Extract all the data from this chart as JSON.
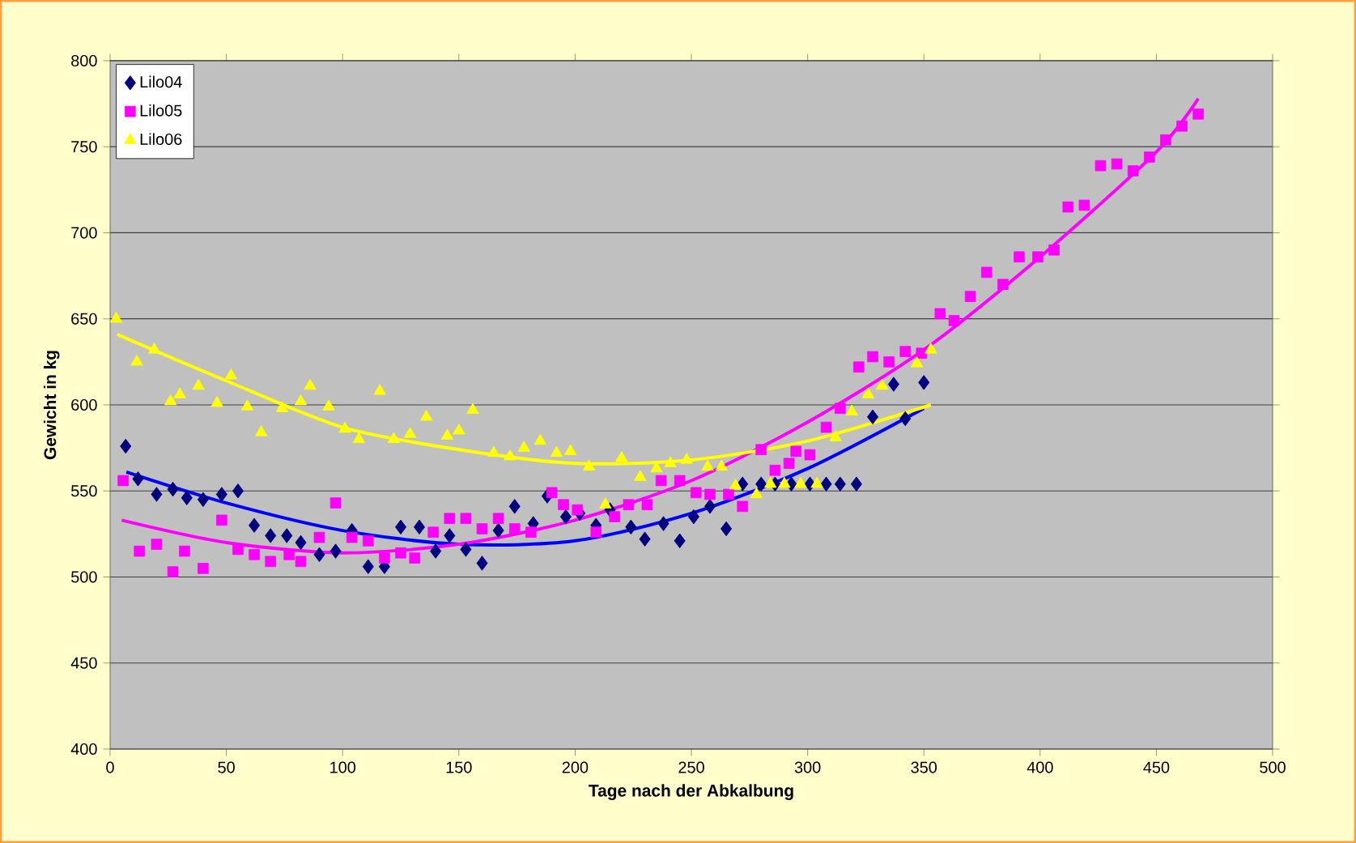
{
  "chart_data": {
    "type": "scatter",
    "xlabel": "Tage nach der Abkalbung",
    "ylabel": "Gewicht in kg",
    "xlim": [
      0,
      500
    ],
    "ylim": [
      400,
      800
    ],
    "xticks": [
      0,
      50,
      100,
      150,
      200,
      250,
      300,
      350,
      400,
      450,
      500
    ],
    "yticks": [
      400,
      450,
      500,
      550,
      600,
      650,
      700,
      750,
      800
    ],
    "grid": "y",
    "legend": "top left",
    "series": [
      {
        "name": "Lilo04",
        "color": "#000080",
        "marker": "diamond",
        "x": [
          6.7,
          12,
          20,
          27,
          33,
          40,
          48,
          55,
          62,
          69,
          76,
          82,
          90,
          97,
          104,
          111,
          118,
          125,
          133,
          140,
          146,
          153,
          160,
          167,
          174,
          182,
          188,
          196,
          202,
          209,
          215,
          224,
          230,
          238,
          245,
          251,
          258,
          265,
          272,
          280,
          286,
          293,
          301,
          308,
          314,
          321,
          328,
          337,
          342,
          350
        ],
        "values": [
          576,
          557,
          548,
          551,
          546,
          545,
          548,
          550,
          530,
          524,
          524,
          520,
          513,
          515,
          527,
          506,
          506,
          529,
          529,
          515,
          524,
          516,
          508,
          527,
          541,
          531,
          547,
          535,
          537,
          530,
          539,
          529,
          522,
          531,
          521,
          535,
          541,
          528,
          554,
          554,
          554,
          554,
          554,
          554,
          554,
          554,
          593,
          612,
          592,
          613
        ]
      },
      {
        "name": "Lilo05",
        "color": "#ff00ff",
        "marker": "square",
        "x": [
          5.6,
          12.6,
          20,
          27,
          32,
          40,
          48,
          55,
          62,
          69,
          77,
          82,
          90,
          97,
          104,
          111,
          118,
          125,
          131,
          139,
          146,
          153,
          160,
          167,
          174,
          181,
          190,
          195,
          201,
          209,
          217,
          223,
          231,
          237,
          245,
          252,
          258,
          266,
          272,
          280,
          286,
          292,
          295,
          301,
          308,
          314,
          322,
          328,
          335,
          342,
          349,
          357,
          363,
          370,
          377,
          384,
          391,
          399,
          406,
          412,
          419,
          426,
          433,
          440,
          447,
          454,
          461,
          468
        ],
        "values": [
          556,
          515,
          519,
          503,
          515,
          505,
          533,
          516,
          513,
          509,
          513,
          509,
          523,
          543,
          523,
          521,
          511,
          514,
          511,
          526,
          534,
          534,
          528,
          534,
          528,
          526,
          549,
          542,
          539,
          526,
          535,
          542,
          542,
          556,
          556,
          549,
          548,
          548,
          541,
          574,
          562,
          566,
          573,
          571,
          587,
          598,
          622,
          628,
          625,
          631,
          630,
          653,
          649,
          663,
          677,
          670,
          686,
          686,
          690,
          715,
          716,
          739,
          740,
          736,
          744,
          754,
          762,
          769
        ]
      },
      {
        "name": "Lilo06",
        "color": "#ffff00",
        "marker": "triangle",
        "x": [
          2.6,
          11.5,
          19,
          26,
          30,
          38,
          46,
          52,
          59,
          65,
          74,
          82,
          86,
          94,
          101,
          107,
          116,
          122,
          129,
          136,
          145,
          150,
          156,
          165,
          172,
          178,
          185,
          192,
          198,
          206,
          213,
          220,
          228,
          235,
          241,
          248,
          257,
          263,
          269,
          278,
          284,
          290,
          297,
          304,
          312,
          319,
          326,
          332,
          347,
          353
        ],
        "values": [
          650,
          625,
          632,
          602,
          606,
          611,
          601,
          617,
          599,
          584,
          598,
          602,
          611,
          599,
          586,
          580,
          608,
          580,
          583,
          593,
          582,
          585,
          597,
          572,
          570,
          575,
          579,
          572,
          573,
          564,
          542,
          569,
          558,
          563,
          566,
          568,
          564,
          564,
          553,
          548,
          554,
          554,
          554,
          554,
          581,
          596,
          606,
          611,
          624,
          632
        ]
      },
      {
        "type": "line",
        "color": "#0000ff",
        "x": [
          7,
          50,
          100,
          150,
          200,
          250,
          300,
          350
        ],
        "values": [
          561,
          543,
          527,
          519,
          521,
          537,
          563,
          598
        ]
      },
      {
        "type": "line",
        "color": "#ff00ff",
        "x": [
          5,
          50,
          100,
          150,
          200,
          250,
          300,
          350,
          400,
          450,
          468
        ],
        "values": [
          533,
          520,
          514,
          519,
          533,
          556,
          590,
          632,
          686,
          747,
          778
        ]
      },
      {
        "type": "line",
        "color": "#ffff00",
        "x": [
          3,
          50,
          100,
          150,
          200,
          250,
          300,
          353
        ],
        "values": [
          641,
          614,
          587,
          574,
          566,
          568,
          579,
          600
        ]
      }
    ]
  }
}
